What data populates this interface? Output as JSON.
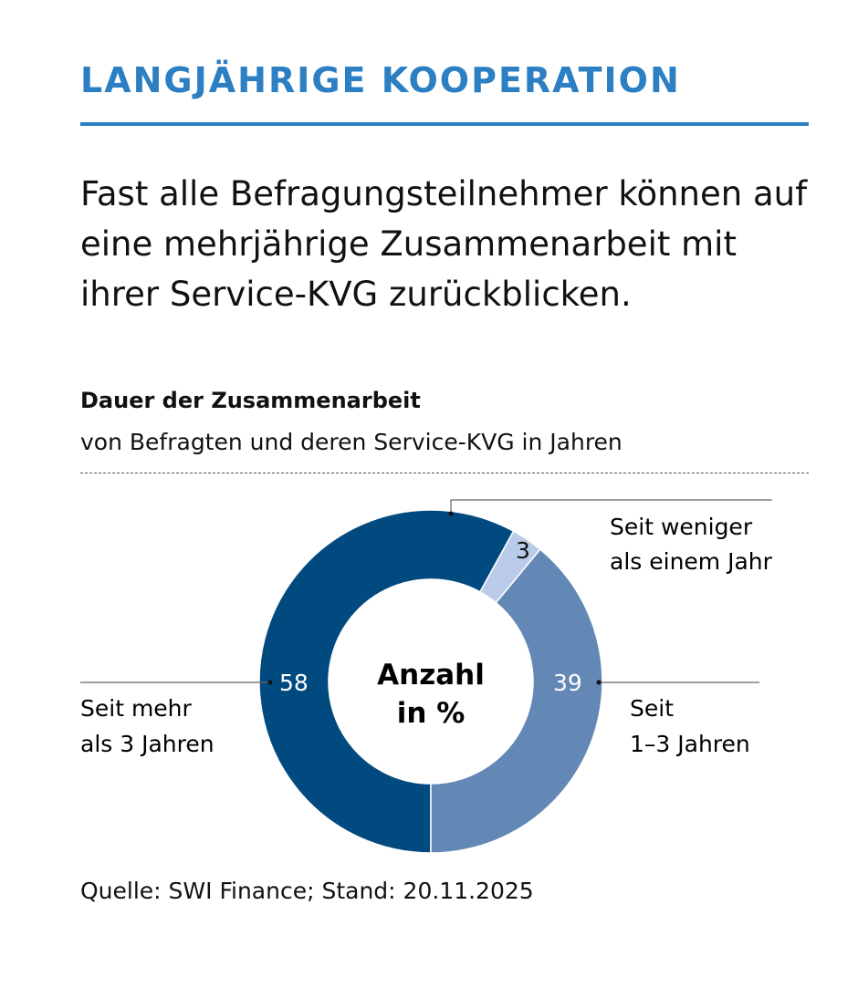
{
  "header": {
    "kicker": "LANGJÄHRIGE KOOPERATION",
    "headline": "Fast alle Befragungsteilnehmer können auf eine mehrjährige Zusammenarbeit mit ihrer Service-KVG zurückblicken."
  },
  "chart_data": {
    "type": "pie",
    "donut": true,
    "title": "Dauer der Zusammenarbeit",
    "subtitle": "von Befragten und deren Service-KVG in Jahren",
    "center_label": [
      "Anzahl",
      "in %"
    ],
    "start": "bottom, clockwise",
    "slices": [
      {
        "label": [
          "Seit mehr",
          "als 3 Jahren"
        ],
        "value": 58,
        "color": "#004a80"
      },
      {
        "label": [
          "Seit weniger",
          "als einem Jahr"
        ],
        "value": 3,
        "color": "#b9cbe8"
      },
      {
        "label": [
          "Seit",
          "1–3 Jahren"
        ],
        "value": 39,
        "color": "#6388b5"
      }
    ]
  },
  "footer": {
    "source": "Quelle: SWI Finance; Stand: 20.11.2025"
  }
}
